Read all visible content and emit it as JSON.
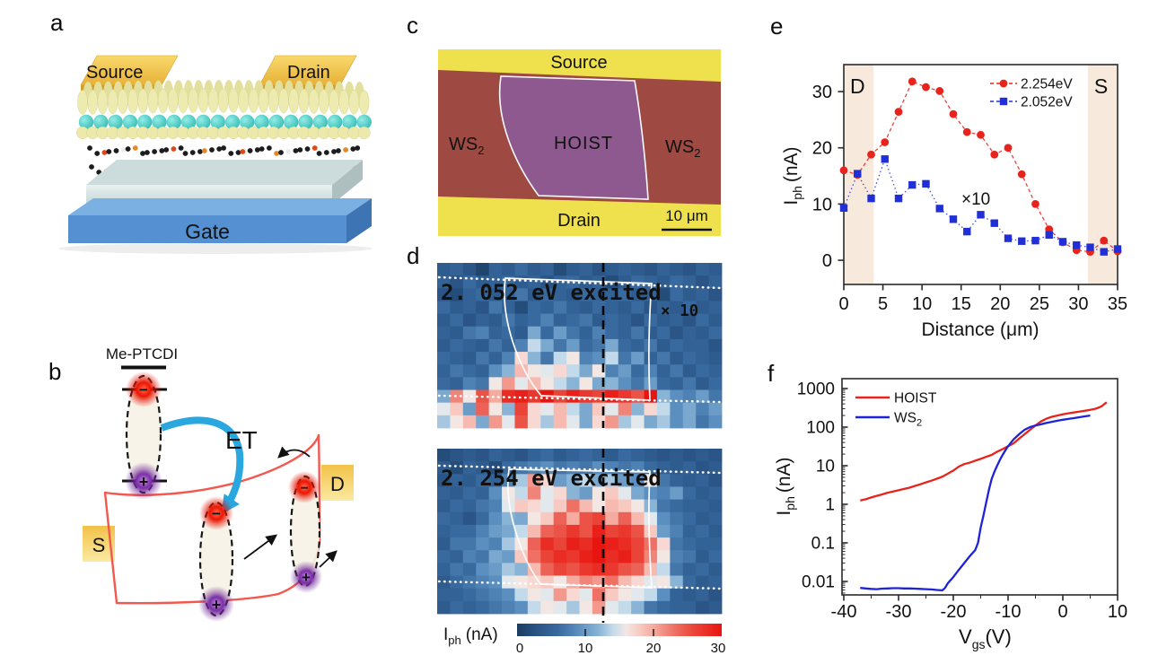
{
  "colors": {
    "red": "#e8231c",
    "blue": "#2130d6",
    "shade": "#f8e9dd",
    "axis": "#2a2a2a",
    "panel_c_yellow": "#efe14d",
    "panel_c_ws2": "#9e4a43",
    "panel_c_hoist": "#8d5a93",
    "gold": "#f0c445",
    "gate_blue": "#5590d2",
    "et_arrow_blue": "#2ba7e0",
    "band_red": "#f4574e"
  },
  "figure": {
    "panels": {
      "a": {
        "letter": "a",
        "source": "Source",
        "drain": "Drain",
        "gate": "Gate"
      },
      "b": {
        "letter": "b",
        "molecule": "Me-PTCDI",
        "et_label": "ET",
        "s_label": "S",
        "d_label": "D",
        "minus": "−",
        "plus": "+"
      },
      "c": {
        "letter": "c",
        "source": "Source",
        "drain": "Drain",
        "hoist": "HOIST",
        "ws2": {
          "pre": "WS",
          "sub": "2"
        },
        "scalebar": "10 μm"
      },
      "d": {
        "letter": "d"
      },
      "e": {
        "letter": "e"
      },
      "f": {
        "letter": "f"
      }
    }
  },
  "chart_data": [
    {
      "id": "panel_e",
      "type": "scatter",
      "title": "",
      "xlabel": "Distance (μm)",
      "ylabel_parts": {
        "pre": "I",
        "sub": "ph",
        "post": "(nA)"
      },
      "xlim": [
        0,
        35
      ],
      "ylim": [
        -4.3,
        34.8
      ],
      "xticks": [
        0,
        5,
        10,
        15,
        20,
        25,
        30,
        35
      ],
      "yticks": [
        0,
        10,
        20,
        30
      ],
      "grid": false,
      "legend_position": "top-right",
      "annotation": "×10",
      "shaded_regions": [
        {
          "label": "D",
          "x0": 0,
          "x1": 3.8
        },
        {
          "label": "S",
          "x0": 31.2,
          "x1": 35
        }
      ],
      "x": [
        0,
        1.75,
        3.5,
        5.25,
        7,
        8.75,
        10.5,
        12.25,
        14,
        15.75,
        17.5,
        19.25,
        21,
        22.75,
        24.5,
        26.25,
        28,
        29.75,
        31.5,
        33.25,
        35
      ],
      "series": [
        {
          "name": "2.254eV",
          "color": "#e8231c",
          "marker": "circle",
          "y": [
            16,
            15.2,
            18.8,
            21,
            26.4,
            31.8,
            30.8,
            30.1,
            26,
            22.8,
            22.3,
            18.8,
            20,
            15.3,
            10,
            5.5,
            3.2,
            1.8,
            1.5,
            3.5,
            1.6
          ]
        },
        {
          "name": "2.052eV",
          "color": "#2130d6",
          "marker": "square",
          "y": [
            9.3,
            15.4,
            11,
            18,
            11,
            13.4,
            13.6,
            9.2,
            7.3,
            5.1,
            8.1,
            6.6,
            3.9,
            3.4,
            3.5,
            4.5,
            3.3,
            2.7,
            2.3,
            1.5,
            2.0
          ]
        }
      ]
    },
    {
      "id": "panel_f",
      "type": "line",
      "title": "",
      "xlabel_parts": {
        "pre": "V",
        "sub": "gs",
        "post": "(V)"
      },
      "ylabel_parts": {
        "pre": "I",
        "sub": "ph",
        "post": "(nA)"
      },
      "xlim": [
        -40,
        10
      ],
      "ylim": [
        0.0045,
        1800
      ],
      "yscale": "log",
      "xticks": [
        -40,
        -30,
        -20,
        -10,
        0,
        10
      ],
      "yticks": [
        {
          "v": 1000,
          "label": "1000"
        },
        {
          "v": 100,
          "label": "100"
        },
        {
          "v": 10,
          "label": "10"
        },
        {
          "v": 1,
          "label": "1"
        },
        {
          "v": 0.1,
          "label": "0.1"
        },
        {
          "v": 0.01,
          "label": "0.01"
        }
      ],
      "legend_position": "top-left",
      "series": [
        {
          "name": "HOIST",
          "color": "#e8231c",
          "x": [
            -37,
            -36,
            -35,
            -34,
            -33,
            -32,
            -31,
            -30,
            -29,
            -28,
            -27,
            -26,
            -25,
            -24,
            -23,
            -22,
            -21,
            -20,
            -19,
            -18,
            -17,
            -16,
            -15,
            -14,
            -13,
            -12,
            -11,
            -10,
            -9,
            -8,
            -7,
            -6,
            -5,
            -4,
            -3,
            -2,
            -1,
            0,
            1,
            2,
            3,
            4,
            5,
            6,
            7,
            8
          ],
          "y": [
            1.25,
            1.35,
            1.5,
            1.65,
            1.8,
            2.0,
            2.15,
            2.3,
            2.5,
            2.7,
            3.0,
            3.3,
            3.7,
            4.1,
            4.6,
            5.2,
            6.2,
            7.5,
            9.5,
            11,
            12,
            13.5,
            15,
            17,
            19,
            23,
            27,
            32,
            38,
            50,
            65,
            85,
            110,
            140,
            165,
            185,
            200,
            215,
            228,
            240,
            252,
            265,
            280,
            300,
            340,
            440
          ]
        },
        {
          "name_parts": {
            "pre": "WS",
            "sub": "2"
          },
          "name": "WS2",
          "color": "#1d24d8",
          "x": [
            -37,
            -36,
            -35,
            -34,
            -33,
            -32,
            -31,
            -30,
            -29,
            -28,
            -27,
            -26,
            -25,
            -24,
            -23,
            -22,
            -21.5,
            -21,
            -20,
            -19,
            -18,
            -17,
            -16,
            -15.5,
            -15,
            -14.5,
            -14,
            -13.5,
            -13,
            -12.5,
            -12,
            -11.5,
            -11,
            -10.5,
            -10,
            -9,
            -8,
            -7,
            -6,
            -5,
            -4,
            -3,
            -2,
            -1,
            0,
            1,
            2,
            3,
            4,
            5
          ],
          "y": [
            0.0068,
            0.0066,
            0.0064,
            0.0063,
            0.0065,
            0.0066,
            0.0067,
            0.0067,
            0.0066,
            0.0066,
            0.0065,
            0.0064,
            0.0063,
            0.0062,
            0.006,
            0.0059,
            0.0068,
            0.009,
            0.013,
            0.02,
            0.03,
            0.045,
            0.065,
            0.1,
            0.25,
            0.5,
            1.1,
            2.4,
            4.5,
            7,
            10,
            14,
            19,
            25,
            32,
            48,
            65,
            85,
            100,
            110,
            118,
            128,
            137,
            146,
            155,
            163,
            171,
            180,
            190,
            200
          ]
        }
      ]
    },
    {
      "id": "map_2052",
      "type": "heatmap",
      "title": "2. 052 eV excited",
      "annotation": "× 10",
      "vmin": 0,
      "vmax": 30,
      "grid": [
        [
          4,
          5,
          3,
          1,
          5,
          4,
          6,
          4,
          5,
          2,
          4,
          5,
          3,
          4,
          5,
          4,
          3,
          5,
          4,
          3,
          5,
          4
        ],
        [
          5,
          3,
          6,
          4,
          5,
          6,
          4,
          5,
          3,
          5,
          6,
          4,
          5,
          2,
          4,
          6,
          5,
          4,
          6,
          5,
          3,
          5
        ],
        [
          3,
          2,
          5,
          6,
          4,
          5,
          7,
          4,
          6,
          5,
          4,
          6,
          5,
          5,
          6,
          4,
          5,
          2,
          6,
          4,
          5,
          3
        ],
        [
          6,
          4,
          5,
          3,
          7,
          5,
          2,
          6,
          5,
          7,
          5,
          4,
          6,
          5,
          4,
          6,
          3,
          5,
          4,
          6,
          4,
          5
        ],
        [
          4,
          6,
          3,
          5,
          4,
          7,
          5,
          6,
          8,
          5,
          6,
          7,
          4,
          6,
          5,
          3,
          6,
          4,
          5,
          3,
          6,
          4
        ],
        [
          5,
          4,
          7,
          8,
          5,
          6,
          4,
          11,
          6,
          10,
          7,
          5,
          8,
          6,
          5,
          7,
          4,
          6,
          3,
          5,
          4,
          6
        ],
        [
          4,
          6,
          5,
          4,
          7,
          5,
          8,
          14,
          11,
          7,
          10,
          6,
          7,
          11,
          6,
          5,
          7,
          4,
          6,
          5,
          5,
          3
        ],
        [
          6,
          5,
          4,
          7,
          5,
          8,
          17,
          12,
          7,
          14,
          16,
          8,
          9,
          14,
          7,
          10,
          5,
          7,
          4,
          6,
          5,
          4
        ],
        [
          5,
          7,
          6,
          5,
          9,
          12,
          19,
          16,
          15,
          17,
          14,
          11,
          16,
          8,
          10,
          6,
          8,
          5,
          7,
          4,
          6,
          5
        ],
        [
          6,
          5,
          8,
          7,
          16,
          21,
          15,
          19,
          16,
          14,
          12,
          16,
          11,
          12,
          9,
          7,
          10,
          6,
          5,
          7,
          4,
          6
        ],
        [
          11,
          22,
          16,
          25,
          20,
          28,
          29,
          27,
          30,
          26,
          29,
          27,
          26,
          29,
          27,
          25,
          30,
          12,
          9,
          8,
          10,
          7
        ],
        [
          15,
          18,
          10,
          24,
          16,
          12,
          26,
          17,
          15,
          19,
          14,
          11,
          18,
          15,
          22,
          12,
          17,
          14,
          9,
          11,
          8,
          10
        ],
        [
          13,
          16,
          19,
          11,
          21,
          15,
          25,
          17,
          13,
          19,
          15,
          11,
          17,
          21,
          13,
          15,
          11,
          13,
          9,
          11,
          7,
          9
        ]
      ]
    },
    {
      "id": "map_2254",
      "type": "heatmap",
      "title": "2. 254 eV excited",
      "annotation": "",
      "vmin": 0,
      "vmax": 30,
      "grid": [
        [
          2,
          3,
          4,
          3,
          5,
          4,
          3,
          5,
          6,
          4,
          5,
          6,
          5,
          4,
          6,
          5,
          4,
          3,
          4,
          3,
          4,
          3
        ],
        [
          4,
          2,
          5,
          4,
          2,
          6,
          7,
          8,
          9,
          7,
          8,
          7,
          9,
          8,
          7,
          8,
          6,
          5,
          4,
          5,
          3,
          4
        ],
        [
          3,
          5,
          4,
          6,
          5,
          8,
          13,
          21,
          17,
          10,
          12,
          14,
          11,
          13,
          10,
          9,
          16,
          7,
          5,
          4,
          5,
          3
        ],
        [
          5,
          4,
          6,
          5,
          9,
          16,
          14,
          22,
          15,
          17,
          12,
          10,
          16,
          18,
          15,
          11,
          9,
          8,
          10,
          6,
          4,
          5
        ],
        [
          4,
          6,
          5,
          7,
          8,
          15,
          18,
          17,
          15,
          18,
          23,
          19,
          16,
          19,
          18,
          16,
          12,
          7,
          6,
          5,
          5,
          4
        ],
        [
          6,
          5,
          3,
          6,
          9,
          12,
          11,
          16,
          18,
          24,
          20,
          25,
          26,
          20,
          24,
          19,
          15,
          9,
          7,
          6,
          4,
          5
        ],
        [
          5,
          6,
          6,
          8,
          10,
          11,
          14,
          19,
          24,
          25,
          27,
          25,
          29,
          26,
          27,
          25,
          18,
          10,
          8,
          5,
          6,
          4
        ],
        [
          4,
          7,
          7,
          9,
          8,
          13,
          16,
          24,
          28,
          26,
          29,
          28,
          30,
          29,
          28,
          26,
          23,
          17,
          7,
          6,
          5,
          5
        ],
        [
          6,
          5,
          8,
          7,
          11,
          10,
          18,
          23,
          26,
          28,
          27,
          29,
          30,
          28,
          29,
          26,
          22,
          16,
          8,
          7,
          4,
          6
        ],
        [
          5,
          7,
          6,
          9,
          10,
          13,
          12,
          19,
          24,
          26,
          25,
          27,
          28,
          27,
          25,
          24,
          19,
          14,
          7,
          5,
          6,
          4
        ],
        [
          4,
          6,
          7,
          8,
          9,
          15,
          16,
          17,
          18,
          16,
          20,
          22,
          21,
          23,
          19,
          17,
          15,
          16,
          12,
          6,
          4,
          5
        ],
        [
          5,
          5,
          6,
          7,
          8,
          9,
          14,
          16,
          15,
          21,
          17,
          15,
          23,
          18,
          16,
          15,
          14,
          9,
          5,
          4,
          5,
          3
        ],
        [
          4,
          6,
          5,
          6,
          7,
          8,
          9,
          14,
          16,
          15,
          13,
          16,
          21,
          15,
          14,
          12,
          7,
          6,
          5,
          5,
          3,
          4
        ]
      ]
    },
    {
      "id": "colorbar",
      "type": "colorbar",
      "label_parts": {
        "pre": "I",
        "sub": "ph",
        "post": "(nA)"
      },
      "ticks": [
        0,
        10,
        20,
        30
      ],
      "vmin": 0,
      "vmax": 30,
      "stops": [
        [
          0,
          "#1a3c62"
        ],
        [
          3,
          "#2a5586"
        ],
        [
          6,
          "#38699f"
        ],
        [
          9,
          "#5b8fbf"
        ],
        [
          12,
          "#8ab4d6"
        ],
        [
          14,
          "#c3daea"
        ],
        [
          15.5,
          "#f1efed"
        ],
        [
          17,
          "#f8d8d2"
        ],
        [
          20,
          "#f5aba0"
        ],
        [
          23,
          "#ef7165"
        ],
        [
          26,
          "#ea4438"
        ],
        [
          30,
          "#e81410"
        ]
      ]
    }
  ]
}
